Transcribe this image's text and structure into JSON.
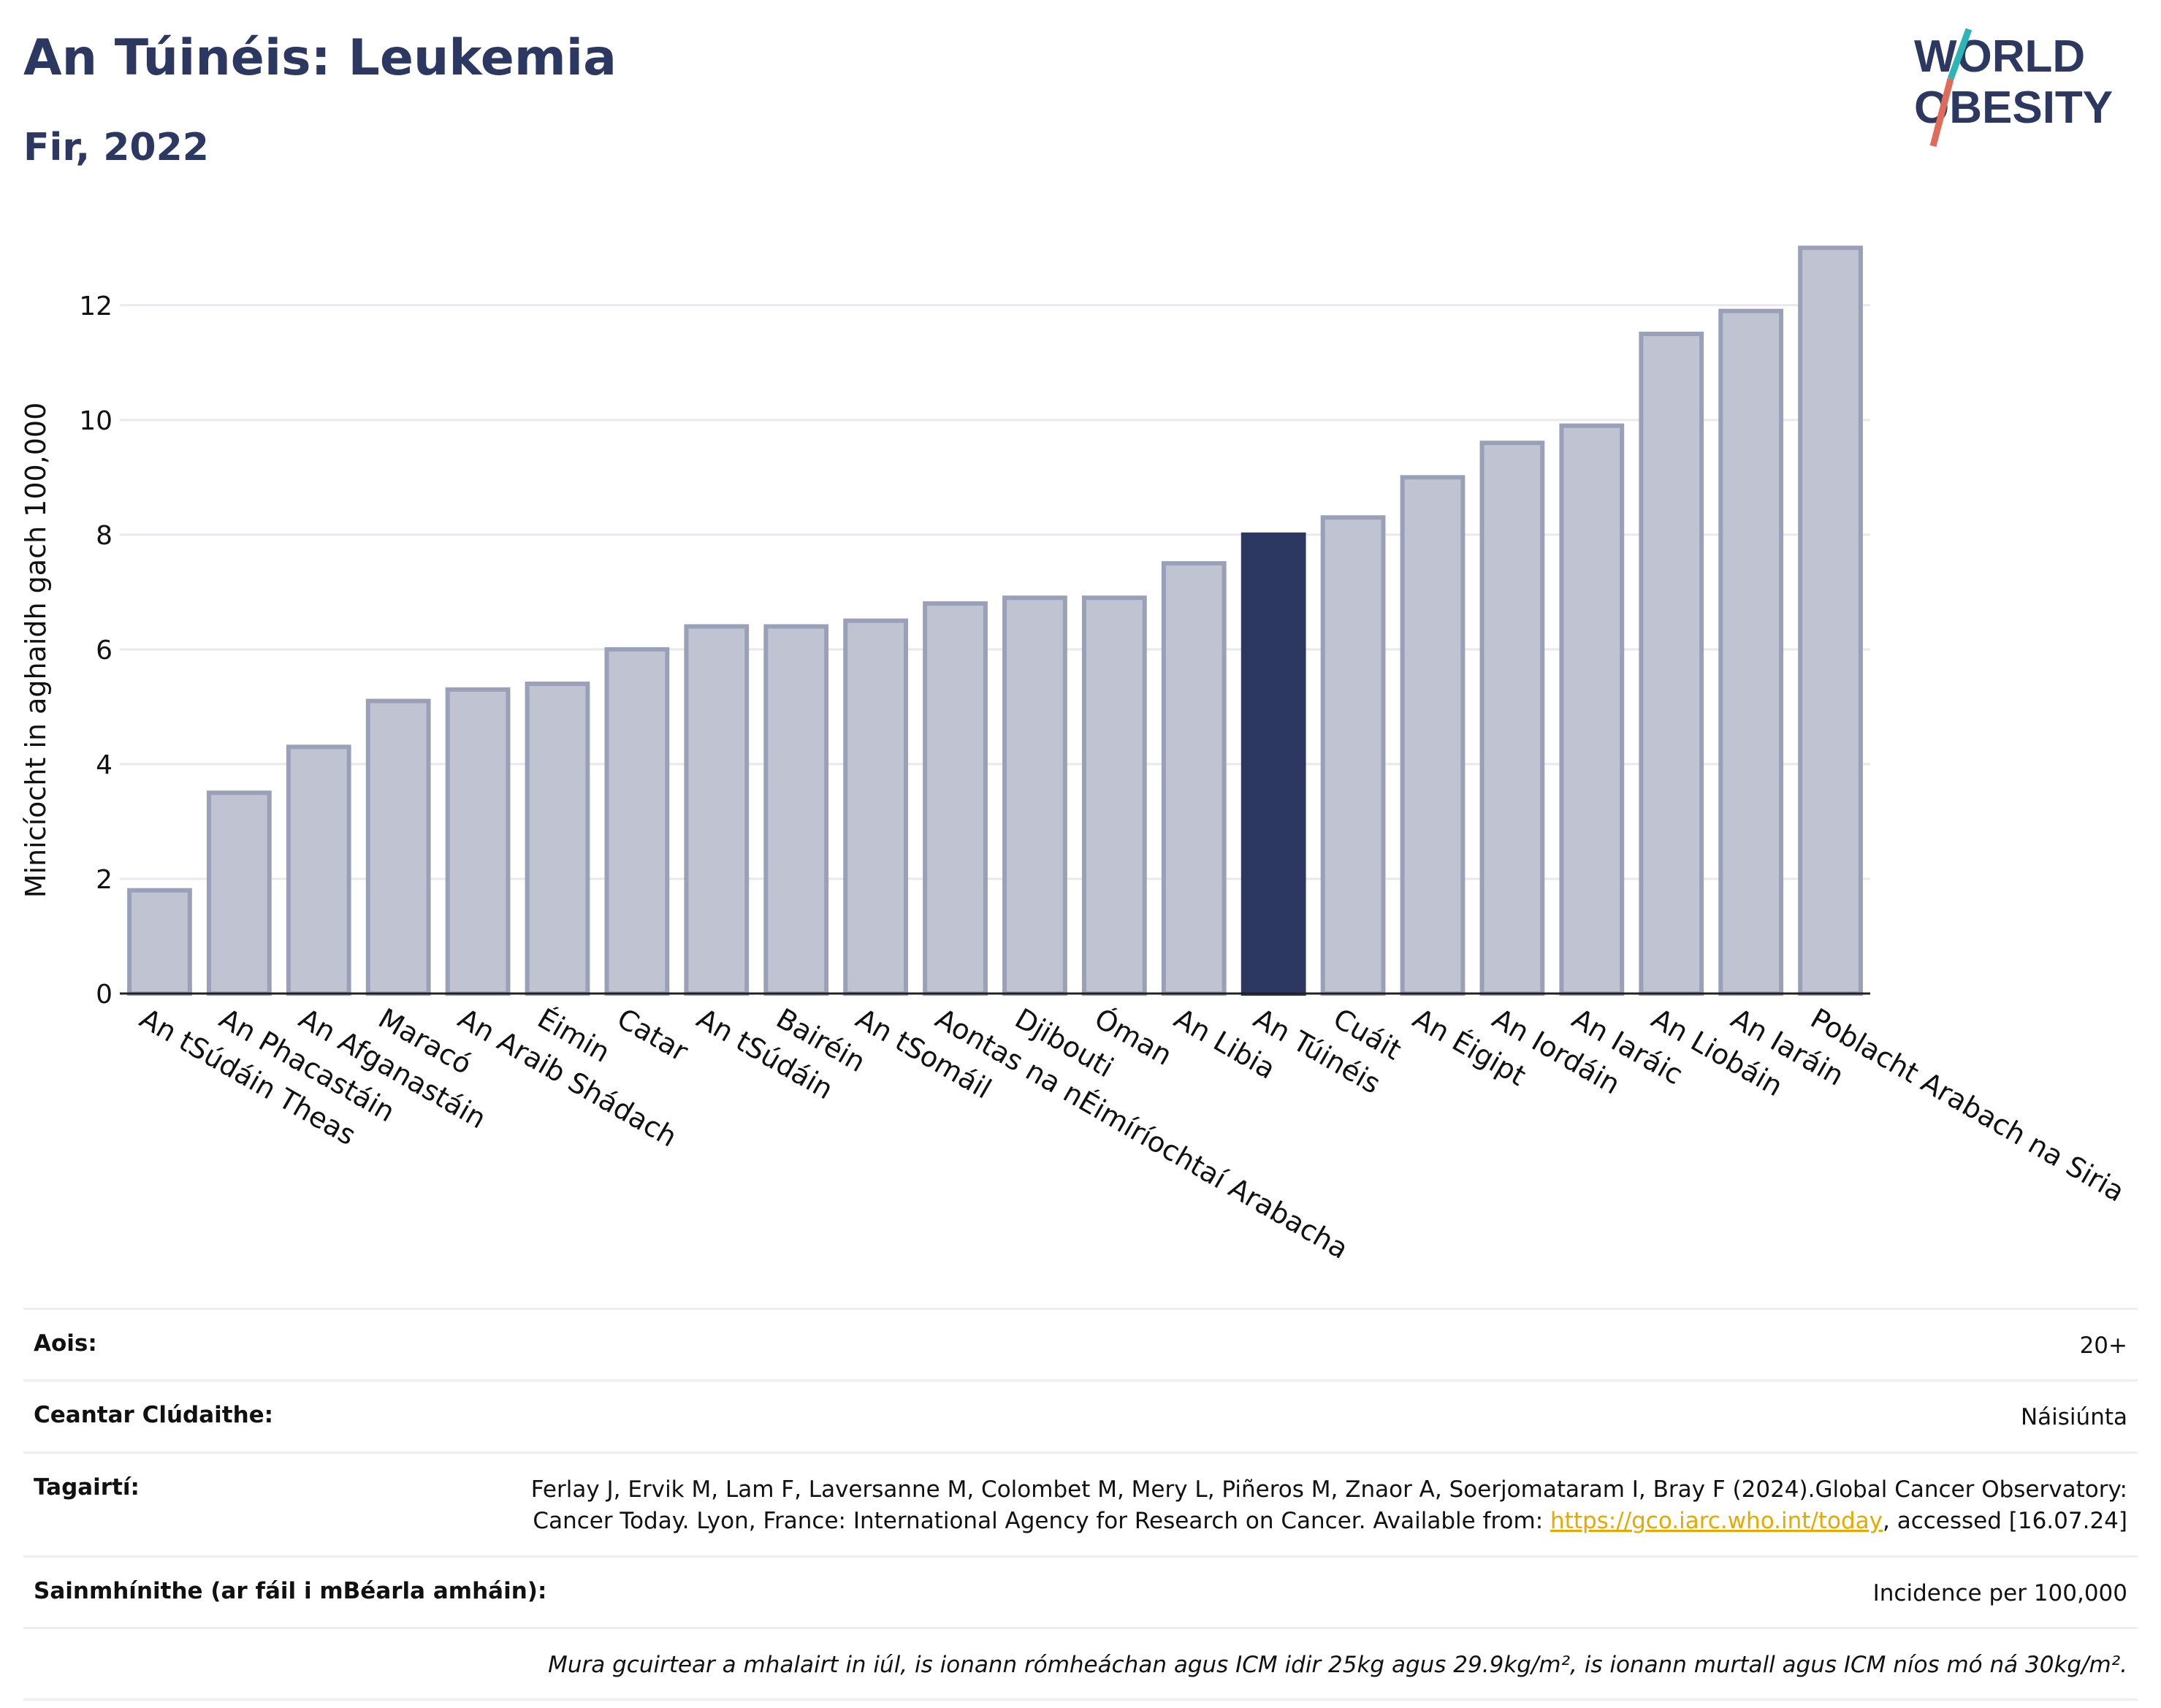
{
  "header": {
    "title": "An Túinéis: Leukemia",
    "subtitle": "Fir, 2022",
    "logo_text_top": "WORLD",
    "logo_text_bottom": "OBESITY"
  },
  "chart_data": {
    "type": "bar",
    "ylabel": "Minicíocht in aghaidh gach 100,000",
    "ylim": [
      0,
      13.5
    ],
    "yticks": [
      0,
      2,
      4,
      6,
      8,
      10,
      12
    ],
    "grid": true,
    "highlight": "An Túinéis",
    "colors": {
      "bar": "#c0c3d1",
      "bar_edge": "#9aa0b8",
      "highlight": "#2c3762"
    },
    "categories": [
      "An tSúdáin Theas",
      "An Phacastáin",
      "An Afganastáin",
      "Maracó",
      "An Araib Shádach",
      "Éimin",
      "Catar",
      "An tSúdáin",
      "Bairéin",
      "An tSomáil",
      "Aontas na nÉimíríochtaí Arabacha",
      "Djibouti",
      "Óman",
      "An Libia",
      "An Túinéis",
      "Cuáit",
      "An Éigipt",
      "An Iordáin",
      "An Iaráic",
      "An Liobáin",
      "An Iaráin",
      "Poblacht Arabach na Siria"
    ],
    "values": [
      1.8,
      3.5,
      4.3,
      5.1,
      5.3,
      5.4,
      6.0,
      6.4,
      6.4,
      6.5,
      6.8,
      6.9,
      6.9,
      7.5,
      8.0,
      8.3,
      9.0,
      9.6,
      9.9,
      11.5,
      11.9,
      13.0
    ]
  },
  "meta": {
    "age_label": "Aois:",
    "age_value": "20+",
    "area_label": "Ceantar Clúdaithe:",
    "area_value": "Náisiúnta",
    "ref_label": "Tagairtí:",
    "ref_text_1": "Ferlay J, Ervik M, Lam F, Laversanne M, Colombet M, Mery L, Piñeros M, Znaor A, Soerjomataram I, Bray F (2024).Global Cancer Observatory: Cancer Today. Lyon, France: International Agency for Research on Cancer. Available from: ",
    "ref_link": "https://gco.iarc.who.int/today",
    "ref_text_2": ", accessed [16.07.24]",
    "def_label": "Sainmhínithe (ar fáil i mBéarla amháin):",
    "def_value": "Incidence per 100,000",
    "note": "Mura gcuirtear a mhalairt in iúl, is ionann rómheáchan agus ICM idir 25kg agus 29.9kg/m², is ionann murtall agus ICM níos mó ná 30kg/m²."
  }
}
